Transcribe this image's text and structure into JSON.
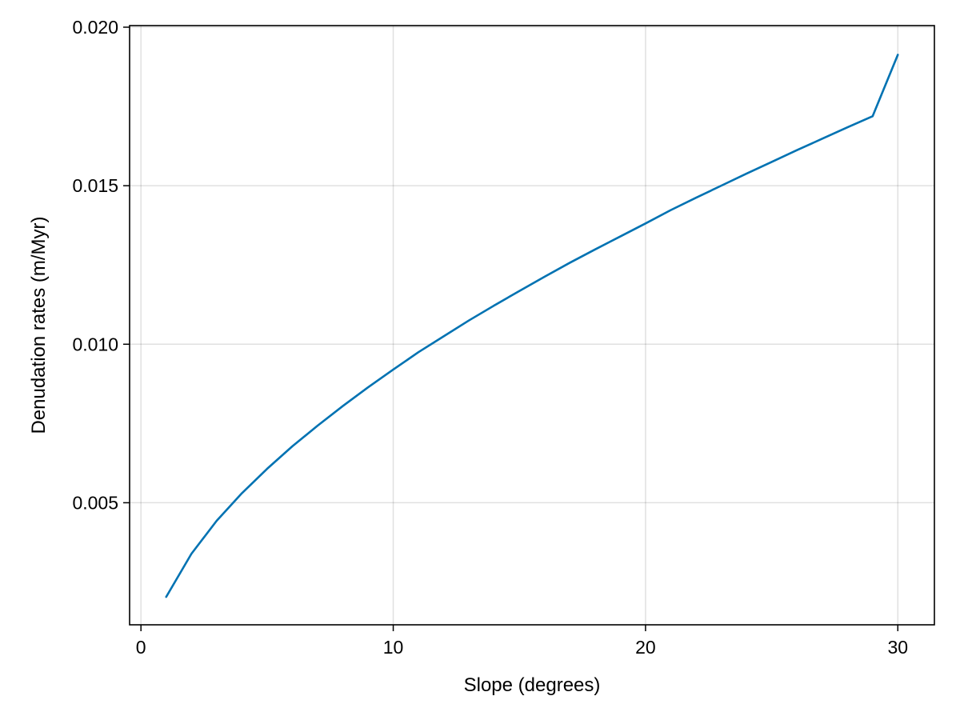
{
  "chart_data": {
    "type": "line",
    "title": "",
    "xlabel": "Slope (degrees)",
    "ylabel": "Denudation rates (m/Myr)",
    "xlim": [
      -0.45,
      31.45
    ],
    "ylim": [
      0.00115,
      0.02005
    ],
    "x_ticks": [
      0,
      10,
      20,
      30
    ],
    "x_tick_labels": [
      "0",
      "10",
      "20",
      "30"
    ],
    "y_ticks": [
      0.005,
      0.01,
      0.015,
      0.02
    ],
    "y_tick_labels": [
      "0.005",
      "0.010",
      "0.015",
      "0.020"
    ],
    "grid": true,
    "legend": "none",
    "series": [
      {
        "color": "#0072b2",
        "x": [
          1,
          2,
          3,
          4,
          5,
          6,
          7,
          8,
          9,
          10,
          11,
          12,
          13,
          14,
          15,
          16,
          17,
          18,
          19,
          20,
          21,
          22,
          23,
          24,
          25,
          26,
          27,
          28,
          29,
          30
        ],
        "y": [
          0.00203,
          0.00339,
          0.00443,
          0.0053,
          0.00607,
          0.00678,
          0.00743,
          0.00805,
          0.00864,
          0.0092,
          0.00975,
          0.01025,
          0.01075,
          0.01122,
          0.01168,
          0.01213,
          0.01257,
          0.01299,
          0.0134,
          0.01381,
          0.01423,
          0.01462,
          0.015,
          0.01538,
          0.01575,
          0.01612,
          0.01648,
          0.01684,
          0.01719,
          0.01913
        ]
      }
    ]
  }
}
